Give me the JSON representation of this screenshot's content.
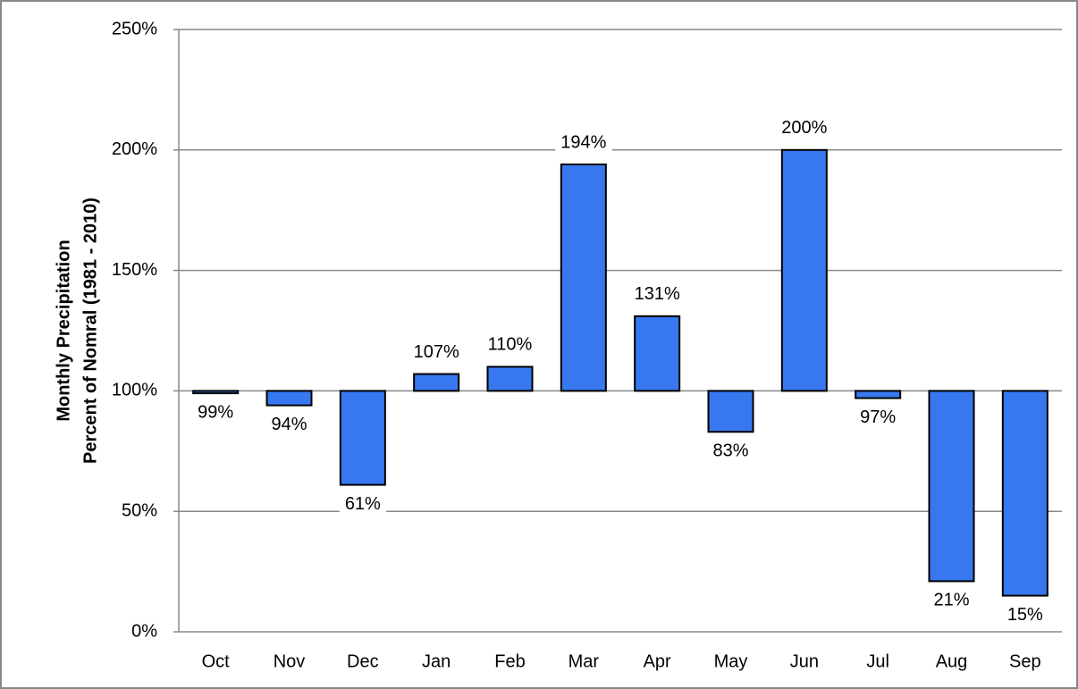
{
  "chart_data": {
    "type": "bar",
    "y_label": [
      "Monthly Precipitation",
      "Percent of Nomral (1981 - 2010)"
    ],
    "categories": [
      "Oct",
      "Nov",
      "Dec",
      "Jan",
      "Feb",
      "Mar",
      "Apr",
      "May",
      "Jun",
      "Jul",
      "Aug",
      "Sep"
    ],
    "values": [
      99,
      94,
      61,
      107,
      110,
      194,
      131,
      83,
      200,
      97,
      21,
      15
    ],
    "value_labels": [
      "99%",
      "94%",
      "61%",
      "107%",
      "110%",
      "194%",
      "131%",
      "83%",
      "200%",
      "97%",
      "21%",
      "15%"
    ],
    "baseline": 100,
    "color": "#3778f0",
    "ylim": [
      0,
      250
    ],
    "yticks": [
      {
        "value": 0,
        "label": "0%"
      },
      {
        "value": 50,
        "label": "50%"
      },
      {
        "value": 100,
        "label": "100%"
      },
      {
        "value": 150,
        "label": "150%"
      },
      {
        "value": 200,
        "label": "200%"
      },
      {
        "value": 250,
        "label": "250%"
      }
    ],
    "grid": true
  }
}
